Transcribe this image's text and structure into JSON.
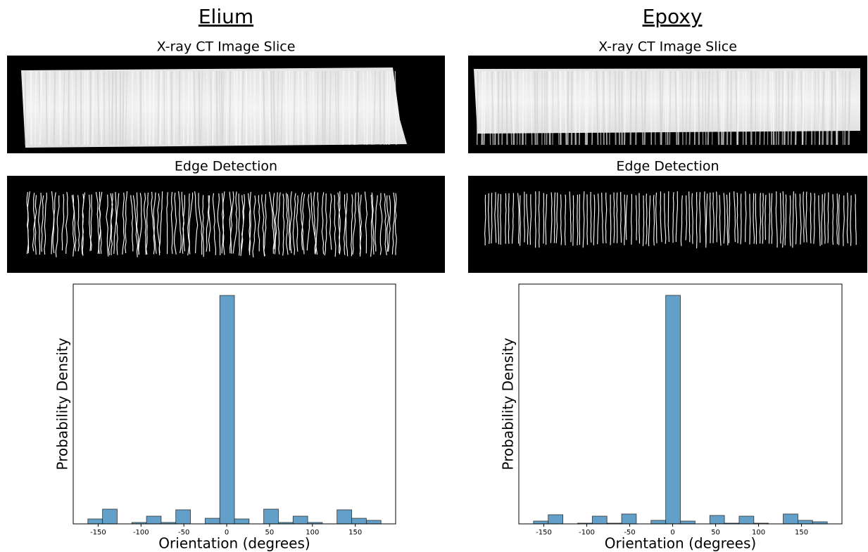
{
  "chart_data": [
    {
      "type": "histogram",
      "title": "Elium",
      "image_titles": [
        "X-ray CT Image Slice",
        "Edge Detection"
      ],
      "xlabel": "Orientation (degrees)",
      "ylabel": "Probability Density",
      "color": "#1f77b4",
      "bins": [
        -162,
        -144.9,
        -127.8,
        -110.7,
        -93.6,
        -76.5,
        -59.4,
        -42.3,
        -25.2,
        -8.1,
        9,
        26.1,
        43.2,
        60.3,
        77.4,
        94.5,
        111.6,
        128.7,
        145.8,
        162.9,
        180
      ],
      "values": [
        0.00087,
        0.0026,
        0,
        0.00025,
        0.00136,
        0.00025,
        0.00248,
        0,
        0.00099,
        0.0403,
        0.00087,
        0,
        0.0026,
        0.00025,
        0.00136,
        0.00025,
        0,
        0.00248,
        0.00099,
        0.00062
      ],
      "xlim": [
        -179.1,
        197.1
      ],
      "xticks": [
        -150,
        -100,
        -50,
        0,
        50,
        100,
        150
      ],
      "ylim": [
        0,
        0.0423
      ]
    },
    {
      "type": "histogram",
      "title": "Epoxy",
      "image_titles": [
        "X-ray CT Image Slice",
        "Edge Detection"
      ],
      "xlabel": "Orientation (degrees)",
      "ylabel": "Probability Density",
      "color": "#1f77b4",
      "bins": [
        -162,
        -144.9,
        -127.8,
        -110.7,
        -93.6,
        -76.5,
        -59.4,
        -42.3,
        -25.2,
        -8.1,
        9,
        26.1,
        43.2,
        60.3,
        77.4,
        94.5,
        111.6,
        128.7,
        145.8,
        162.9,
        180
      ],
      "values": [
        0.00055,
        0.00179,
        0,
        0.00014,
        0.00151,
        0.00014,
        0.00193,
        0,
        0.00069,
        0.0447,
        0.00055,
        0,
        0.00165,
        0.00014,
        0.00151,
        0.00014,
        0,
        0.00193,
        0.00069,
        0.00041
      ],
      "xlim": [
        -179.1,
        197.1
      ],
      "xticks": [
        -150,
        -100,
        -50,
        0,
        50,
        100,
        150
      ],
      "ylim": [
        0,
        0.0469
      ]
    }
  ]
}
